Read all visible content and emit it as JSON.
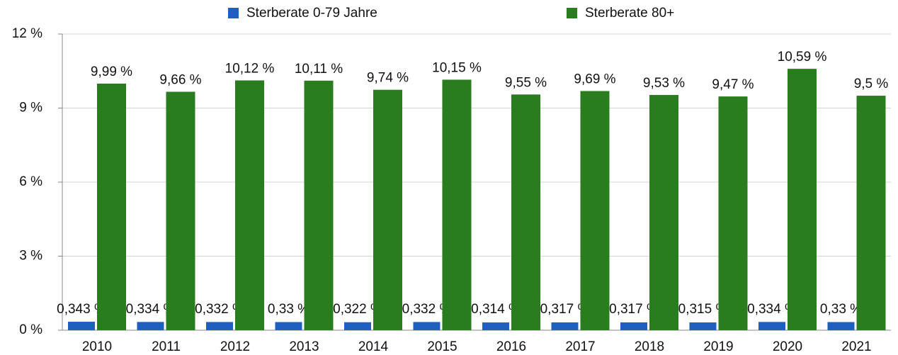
{
  "chart_data": {
    "type": "bar",
    "categories": [
      "2010",
      "2011",
      "2012",
      "2013",
      "2014",
      "2015",
      "2016",
      "2017",
      "2018",
      "2019",
      "2020",
      "2021"
    ],
    "series": [
      {
        "name": "Sterberate 0-79 Jahre",
        "color": "#1f5fbf",
        "values": [
          0.343,
          0.334,
          0.332,
          0.33,
          0.322,
          0.332,
          0.314,
          0.317,
          0.317,
          0.315,
          0.334,
          0.33
        ],
        "value_labels": [
          "0,343 %",
          "0,334 %",
          "0,332 %",
          "0,33 %",
          "0,322 %",
          "0,332 %",
          "0,314 %",
          "0,317 %",
          "0,317 %",
          "0,315 %",
          "0,334 %",
          "0,33 %"
        ]
      },
      {
        "name": "Sterberate 80+",
        "color": "#2a7d1e",
        "values": [
          9.99,
          9.66,
          10.12,
          10.11,
          9.74,
          10.15,
          9.55,
          9.69,
          9.53,
          9.47,
          10.59,
          9.5
        ],
        "value_labels": [
          "9,99 %",
          "9,66 %",
          "10,12 %",
          "10,11 %",
          "9,74 %",
          "10,15 %",
          "9,55 %",
          "9,69 %",
          "9,53 %",
          "9,47 %",
          "10,59 %",
          "9,5 %"
        ]
      }
    ],
    "ylim": [
      0,
      12
    ],
    "yticks": [
      {
        "value": 0,
        "label": "0 %"
      },
      {
        "value": 3,
        "label": "3 %"
      },
      {
        "value": 6,
        "label": "6 %"
      },
      {
        "value": 9,
        "label": "9 %"
      },
      {
        "value": 12,
        "label": "12 %"
      }
    ],
    "grid": true,
    "legend": "top"
  }
}
